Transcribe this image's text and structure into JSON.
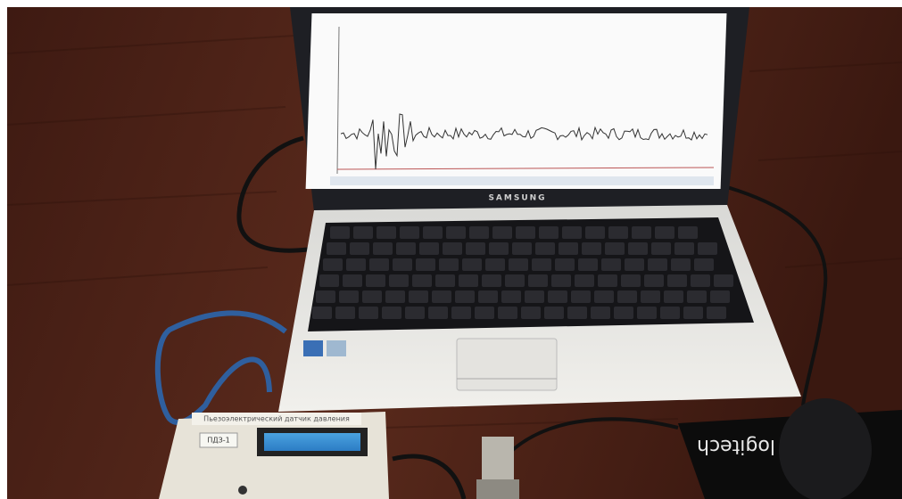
{
  "photo": {
    "laptop_brand": "SAMSUNG",
    "device_label": "Пьезоэлектрический датчик давления",
    "device_model": "ПДЗ-1",
    "mousepad_logo": "logitech"
  }
}
